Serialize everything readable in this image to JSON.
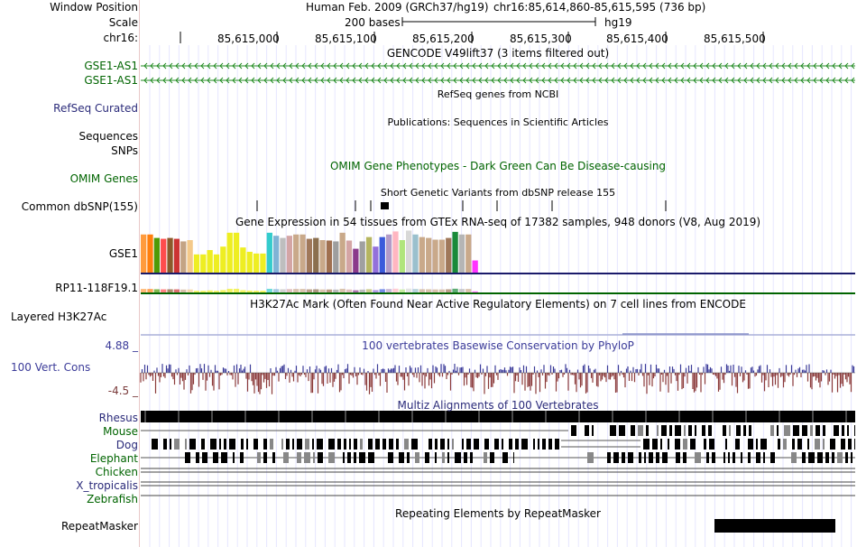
{
  "header": {
    "window_position_label": "Window Position",
    "scale_label": "Scale",
    "chrom_label": "chr16:",
    "assembly": "Human Feb. 2009 (GRCh37/hg19)",
    "position": "chr16:85,614,860-85,615,595 (736 bp)",
    "scale_text": "200 bases",
    "scale_db": "hg19",
    "ruler_ticks": [
      "85,615,000",
      "85,615,100",
      "85,615,200",
      "85,615,300",
      "85,615,400",
      "85,615,500"
    ]
  },
  "tracks": {
    "gencode": {
      "title": "GENCODE V49lift37 (3 items filtered out)",
      "items": [
        {
          "label": "GSE1-AS1",
          "color": "#228b22"
        },
        {
          "label": "GSE1-AS1",
          "color": "#228b22"
        }
      ]
    },
    "refseq": {
      "title": "RefSeq genes from NCBI",
      "label": "RefSeq Curated",
      "color": "#1a1a7a"
    },
    "publications": {
      "title": "Publications: Sequences in Scientific Articles",
      "label": "Sequences"
    },
    "snps_label": "SNPs",
    "omim": {
      "title": "OMIM Gene Phenotypes - Dark Green Can Be Disease-causing",
      "label": "OMIM Genes",
      "color": "#006400"
    },
    "dbsnp": {
      "title": "Short Genetic Variants from dbSNP release 155",
      "label": "Common dbSNP(155)"
    },
    "gtex": {
      "title": "Gene Expression in 54 tissues from GTEx RNA-seq of 17382 samples, 948 donors (V8, Aug 2019)",
      "genes": [
        "GSE1",
        "RP11-118F19.1"
      ],
      "bar_levels": [
        0.88,
        0.88,
        0.8,
        0.78,
        0.8,
        0.78,
        0.72,
        0.75,
        0.42,
        0.42,
        0.52,
        0.42,
        0.6,
        0.92,
        0.92,
        0.58,
        0.48,
        0.44,
        0.44,
        0.92,
        0.85,
        0.8,
        0.85,
        0.88,
        0.88,
        0.78,
        0.8,
        0.75,
        0.74,
        0.72,
        0.92,
        0.74,
        0.55,
        0.72,
        0.82,
        0.6,
        0.82,
        0.88,
        0.95,
        0.75,
        0.97,
        0.88,
        0.82,
        0.8,
        0.76,
        0.76,
        0.8,
        0.94,
        0.88,
        0.88,
        0.28
      ],
      "bar_colors": [
        "#ff9b3d",
        "#ff7f0e",
        "#4e9a06",
        "#ff4d4d",
        "#8b5a2b",
        "#cc3333",
        "#c4a484",
        "#f4c98a",
        "#eeee22",
        "#eeee22",
        "#eeee22",
        "#eeee22",
        "#eeee22",
        "#eeee22",
        "#eeee22",
        "#eeee22",
        "#eeee22",
        "#eeee22",
        "#eeee22",
        "#33cccc",
        "#7fb3d5",
        "#bebebe",
        "#d4a5a5",
        "#c9a98a",
        "#c9a98a",
        "#a0785a",
        "#8b6f4e",
        "#c9a98a",
        "#a07050",
        "#9e9e9e",
        "#c9a98a",
        "#d4a5a5",
        "#8b3a8b",
        "#a0a0a0",
        "#b5b560",
        "#9370db",
        "#3b5bdb",
        "#b39bc8",
        "#ffb6c1",
        "#b0e57c",
        "#d8d8d8",
        "#9ac0cd",
        "#c9a98a",
        "#c9a98a",
        "#c9a98a",
        "#c9a98a",
        "#a0785a",
        "#1a8a3a",
        "#b5b5b5",
        "#c9a98a",
        "#ff33ff"
      ]
    },
    "h3k27ac": {
      "title": "H3K27Ac Mark (Often Found Near Active Regulatory Elements) on 7 cell lines from ENCODE",
      "label": "Layered H3K27Ac"
    },
    "phylop": {
      "title": "100 vertebrates Basewise Conservation by PhyloP",
      "label": "100 Vert. Cons",
      "max": "4.88 _",
      "min": "-4.5 _"
    },
    "multiz": {
      "title": "Multiz Alignments of 100 Vertebrates",
      "species": [
        "Rhesus",
        "Mouse",
        "Dog",
        "Elephant",
        "Chicken",
        "X_tropicalis",
        "Zebrafish"
      ]
    },
    "repeatmasker": {
      "title": "Repeating Elements by RepeatMasker",
      "label": "RepeatMasker"
    }
  },
  "colors": {
    "green": "#006400",
    "navy": "#1a1a7a",
    "cons_pos": "#3b3b99",
    "cons_neg": "#8b3a3a"
  }
}
